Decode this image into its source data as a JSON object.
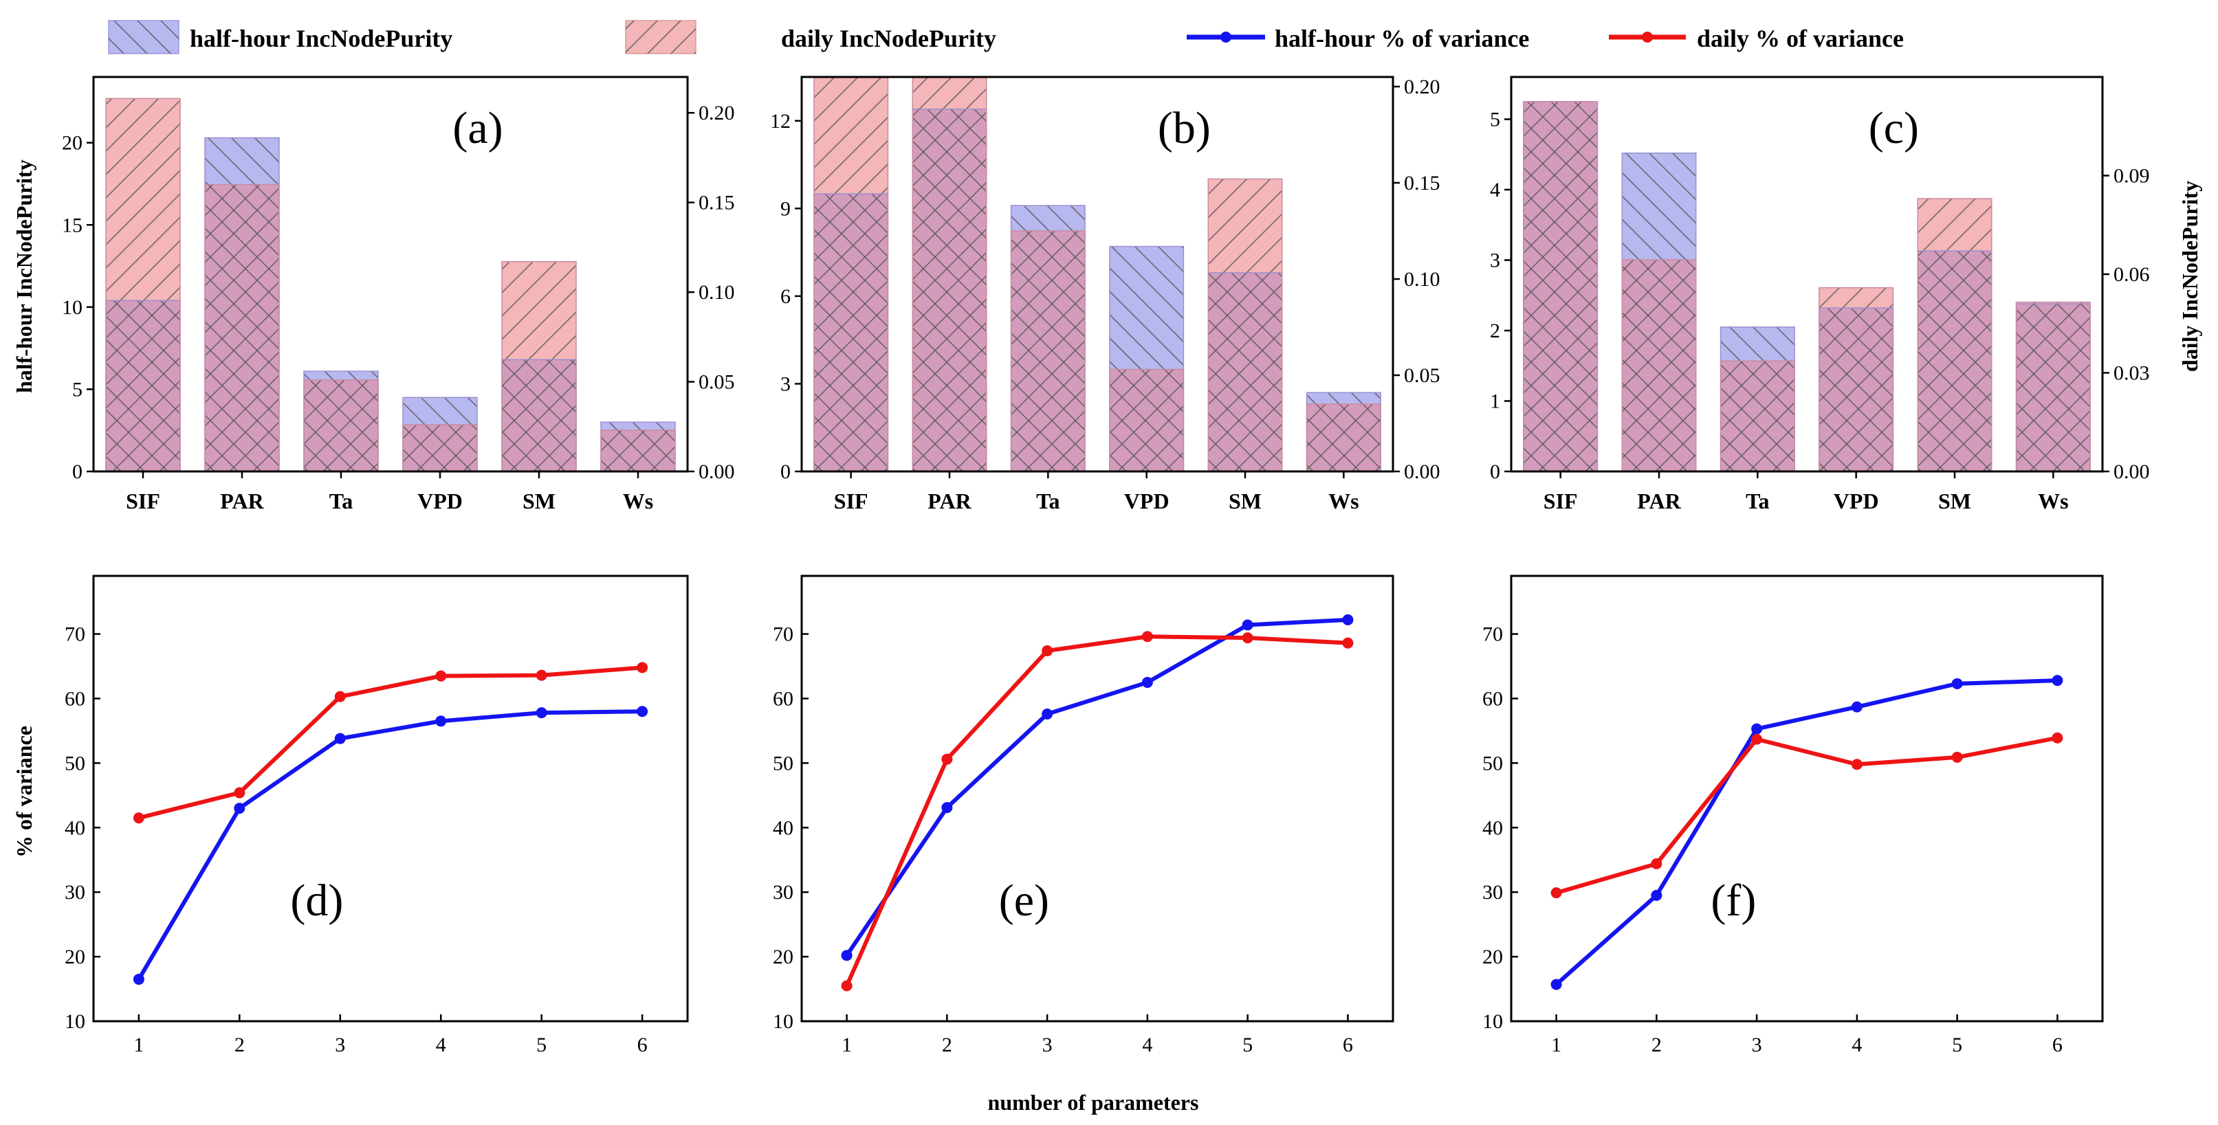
{
  "legend": {
    "half_bar": "half-hour IncNodePurity",
    "daily_bar": "daily IncNodePurity",
    "half_line": "half-hour % of variance",
    "daily_line": "daily % of variance"
  },
  "colors": {
    "half_fill": "#b8b8f0",
    "daily_fill": "#f4b6b8",
    "overlap_fill": "#d49cbc",
    "half_line": "#1414f0",
    "daily_line": "#ee1414",
    "hatch": "#555555"
  },
  "axis_titles": {
    "left_bar": "half-hour IncNodePurity",
    "right_bar": "daily IncNodePurity",
    "left_line": "% of variance",
    "bottom_line": "number of parameters"
  },
  "chart_data": [
    {
      "type": "bar",
      "panel": "(a)",
      "categories": [
        "SIF",
        "PAR",
        "Ta",
        "VPD",
        "SM",
        "Ws"
      ],
      "series": [
        {
          "name": "half-hour IncNodePurity",
          "axis": "left",
          "values": [
            10.4,
            20.3,
            6.1,
            4.5,
            6.8,
            3.0
          ]
        },
        {
          "name": "daily IncNodePurity",
          "axis": "right",
          "values": [
            0.208,
            0.16,
            0.051,
            0.026,
            0.117,
            0.023
          ]
        }
      ],
      "left_ylim": [
        0,
        24
      ],
      "left_ticks": [
        "0",
        "5",
        "10",
        "15",
        "20"
      ],
      "left_tick_values": [
        0,
        5,
        10,
        15,
        20
      ],
      "right_ylim": [
        0,
        0.22
      ],
      "right_ticks": [
        "0.00",
        "0.05",
        "0.10",
        "0.15",
        "0.20"
      ],
      "right_tick_values": [
        0,
        0.05,
        0.1,
        0.15,
        0.2
      ]
    },
    {
      "type": "bar",
      "panel": "(b)",
      "categories": [
        "SIF",
        "PAR",
        "Ta",
        "VPD",
        "SM",
        "Ws"
      ],
      "series": [
        {
          "name": "half-hour IncNodePurity",
          "axis": "left",
          "values": [
            9.5,
            12.4,
            9.1,
            7.7,
            6.8,
            2.7
          ]
        },
        {
          "name": "daily IncNodePurity",
          "axis": "right",
          "values": [
            0.205,
            0.205,
            0.125,
            0.053,
            0.152,
            0.035
          ]
        }
      ],
      "left_ylim": [
        0,
        13.5
      ],
      "left_ticks": [
        "0",
        "3",
        "6",
        "9",
        "12"
      ],
      "left_tick_values": [
        0,
        3,
        6,
        9,
        12
      ],
      "right_ylim": [
        0,
        0.205
      ],
      "right_ticks": [
        "0.00",
        "0.05",
        "0.10",
        "0.15",
        "0.20"
      ],
      "right_tick_values": [
        0,
        0.05,
        0.1,
        0.15,
        0.2
      ]
    },
    {
      "type": "bar",
      "panel": "(c)",
      "categories": [
        "SIF",
        "PAR",
        "Ta",
        "VPD",
        "SM",
        "Ws"
      ],
      "series": [
        {
          "name": "half-hour IncNodePurity",
          "axis": "left",
          "values": [
            5.25,
            4.52,
            2.05,
            2.32,
            3.13,
            2.38
          ]
        },
        {
          "name": "daily IncNodePurity",
          "axis": "right",
          "values": [
            0.1125,
            0.0644,
            0.0336,
            0.0559,
            0.083,
            0.0515
          ]
        }
      ],
      "left_ylim": [
        0,
        5.6
      ],
      "left_ticks": [
        "0",
        "1",
        "2",
        "3",
        "4",
        "5"
      ],
      "left_tick_values": [
        0,
        1,
        2,
        3,
        4,
        5
      ],
      "right_ylim": [
        0,
        0.12
      ],
      "right_ticks": [
        "0.00",
        "0.03",
        "0.06",
        "0.09"
      ],
      "right_tick_values": [
        0,
        0.03,
        0.06,
        0.09
      ]
    },
    {
      "type": "line",
      "panel": "(d)",
      "x": [
        1,
        2,
        3,
        4,
        5,
        6
      ],
      "series": [
        {
          "name": "half-hour % of variance",
          "values": [
            16.5,
            43.0,
            53.8,
            56.5,
            57.8,
            58.0
          ]
        },
        {
          "name": "daily % of variance",
          "values": [
            41.5,
            45.4,
            60.3,
            63.5,
            63.6,
            64.8
          ]
        }
      ],
      "xlim": [
        0.55,
        6.45
      ],
      "ylim": [
        10,
        79
      ],
      "yticks": [
        "10",
        "20",
        "30",
        "40",
        "50",
        "60",
        "70"
      ],
      "ytick_values": [
        10,
        20,
        30,
        40,
        50,
        60,
        70
      ],
      "xticks": [
        "1",
        "2",
        "3",
        "4",
        "5",
        "6"
      ]
    },
    {
      "type": "line",
      "panel": "(e)",
      "x": [
        1,
        2,
        3,
        4,
        5,
        6
      ],
      "series": [
        {
          "name": "half-hour % of variance",
          "values": [
            20.2,
            43.1,
            57.6,
            62.5,
            71.4,
            72.2
          ]
        },
        {
          "name": "daily % of variance",
          "values": [
            15.5,
            50.6,
            67.4,
            69.6,
            69.4,
            68.6
          ]
        }
      ],
      "xlim": [
        0.55,
        6.45
      ],
      "ylim": [
        10,
        79
      ],
      "yticks": [
        "10",
        "20",
        "30",
        "40",
        "50",
        "60",
        "70"
      ],
      "ytick_values": [
        10,
        20,
        30,
        40,
        50,
        60,
        70
      ],
      "xticks": [
        "1",
        "2",
        "3",
        "4",
        "5",
        "6"
      ]
    },
    {
      "type": "line",
      "panel": "(f)",
      "x": [
        1,
        2,
        3,
        4,
        5,
        6
      ],
      "series": [
        {
          "name": "half-hour % of variance",
          "values": [
            15.7,
            29.5,
            55.3,
            58.7,
            62.3,
            62.8
          ]
        },
        {
          "name": "daily % of variance",
          "values": [
            29.9,
            34.4,
            53.7,
            49.8,
            50.9,
            53.9
          ]
        }
      ],
      "xlim": [
        0.55,
        6.45
      ],
      "ylim": [
        10,
        79
      ],
      "yticks": [
        "10",
        "20",
        "30",
        "40",
        "50",
        "60",
        "70"
      ],
      "ytick_values": [
        10,
        20,
        30,
        40,
        50,
        60,
        70
      ],
      "xticks": [
        "1",
        "2",
        "3",
        "4",
        "5",
        "6"
      ]
    }
  ]
}
